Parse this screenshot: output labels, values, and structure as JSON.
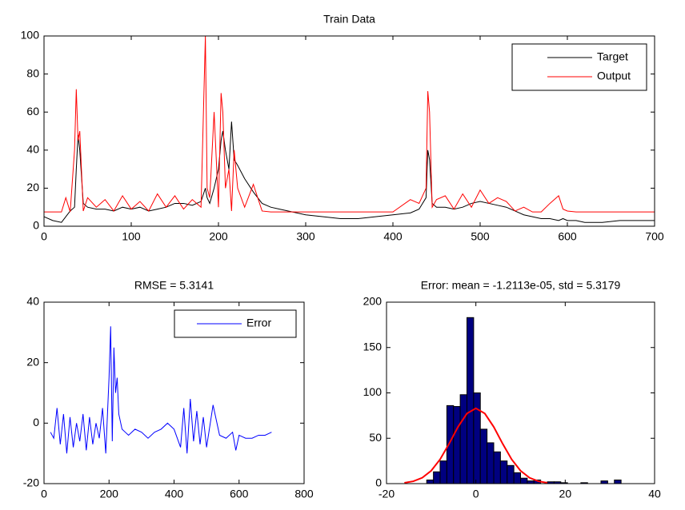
{
  "chart_data": [
    {
      "type": "line",
      "title": "Train Data",
      "x": [
        0,
        10,
        20,
        25,
        30,
        35,
        37,
        39,
        41,
        45,
        50,
        60,
        70,
        80,
        90,
        100,
        110,
        120,
        130,
        140,
        150,
        160,
        170,
        180,
        185,
        187,
        190,
        195,
        200,
        203,
        205,
        208,
        212,
        215,
        218,
        222,
        230,
        240,
        250,
        260,
        270,
        280,
        290,
        300,
        320,
        340,
        360,
        380,
        400,
        420,
        430,
        438,
        440,
        442,
        445,
        450,
        460,
        470,
        480,
        490,
        500,
        510,
        520,
        530,
        540,
        550,
        560,
        570,
        580,
        590,
        595,
        600,
        610,
        620,
        640,
        660,
        680,
        700
      ],
      "series": [
        {
          "name": "Target",
          "color": "#000000",
          "values": [
            5,
            3,
            2,
            5,
            8,
            10,
            30,
            48,
            40,
            12,
            10,
            9,
            9,
            8,
            10,
            9,
            10,
            8,
            9,
            10,
            12,
            12,
            11,
            13,
            20,
            15,
            12,
            20,
            30,
            45,
            50,
            40,
            30,
            55,
            35,
            32,
            25,
            18,
            12,
            10,
            9,
            8,
            7,
            6,
            5,
            4,
            4,
            5,
            6,
            7,
            9,
            15,
            40,
            35,
            12,
            10,
            10,
            9,
            10,
            12,
            13,
            12,
            11,
            10,
            8,
            6,
            5,
            4,
            4,
            3,
            4,
            3,
            3,
            2,
            2,
            3,
            3,
            3
          ]
        },
        {
          "name": "Output",
          "color": "#ff0000",
          "values": [
            7.5,
            7.5,
            7.5,
            15,
            7.5,
            40,
            72,
            45,
            50,
            8,
            15,
            10,
            14,
            8,
            16,
            9,
            13,
            8,
            17,
            10,
            16,
            9,
            14,
            10,
            100,
            20,
            15,
            60,
            10,
            70,
            60,
            20,
            30,
            8,
            40,
            20,
            10,
            22,
            8,
            7.5,
            7.5,
            7.5,
            7.5,
            7.5,
            7.5,
            7.5,
            7.5,
            7.5,
            7.5,
            14,
            12,
            20,
            71,
            60,
            10,
            14,
            16,
            9,
            17,
            10,
            19,
            12,
            15,
            13,
            8,
            10,
            7.5,
            7.5,
            12,
            16,
            9,
            8,
            7.5,
            7.5,
            7.5,
            7.5,
            7.5,
            7.5
          ]
        }
      ],
      "xlim": [
        0,
        700
      ],
      "ylim": [
        0,
        100
      ],
      "xticks": [
        0,
        100,
        200,
        300,
        400,
        500,
        600,
        700
      ],
      "yticks": [
        0,
        20,
        40,
        60,
        80,
        100
      ],
      "legend": "upper right"
    },
    {
      "type": "line",
      "title": "RMSE = 5.3141",
      "x": [
        20,
        30,
        40,
        50,
        60,
        70,
        80,
        90,
        100,
        110,
        120,
        130,
        140,
        150,
        160,
        170,
        180,
        190,
        200,
        205,
        210,
        215,
        220,
        225,
        230,
        240,
        250,
        260,
        280,
        300,
        320,
        340,
        360,
        380,
        400,
        420,
        430,
        440,
        450,
        460,
        470,
        480,
        490,
        500,
        520,
        540,
        560,
        580,
        590,
        600,
        620,
        640,
        660,
        680,
        700
      ],
      "series": [
        {
          "name": "Error",
          "color": "#0000ff",
          "values": [
            -3,
            -5,
            5,
            -7,
            3,
            -10,
            2,
            -8,
            0,
            -6,
            3,
            -9,
            2,
            -7,
            0,
            -5,
            5,
            -10,
            15,
            32,
            -6,
            25,
            10,
            15,
            3,
            -2,
            -3,
            -4,
            -2,
            -3,
            -5,
            -3,
            -2,
            0,
            -2,
            -8,
            5,
            -10,
            8,
            -6,
            4,
            -7,
            2,
            -8,
            6,
            -4,
            -5,
            -3,
            -9,
            -4,
            -5,
            -5,
            -4,
            -4,
            -3
          ]
        }
      ],
      "xlim": [
        0,
        800
      ],
      "ylim": [
        -20,
        40
      ],
      "xticks": [
        0,
        200,
        400,
        600,
        800
      ],
      "yticks": [
        -20,
        0,
        20,
        40
      ],
      "legend": "upper right"
    },
    {
      "type": "histogram",
      "title": "Error: mean = -1.2113e-05, std = 5.3179",
      "bins": [
        -11,
        -9.5,
        -8,
        -6.5,
        -5,
        -3.5,
        -2,
        -0.5,
        1,
        2.5,
        4,
        5.5,
        7,
        8.5,
        10,
        11.5,
        13,
        14.5,
        16,
        17.5,
        19,
        20.5,
        22,
        23.5,
        25,
        26.5,
        28,
        29.5,
        31,
        32.5
      ],
      "counts": [
        4,
        13,
        25,
        86,
        85,
        98,
        183,
        100,
        60,
        45,
        35,
        25,
        20,
        12,
        6,
        3,
        4,
        0,
        2,
        2,
        1,
        0,
        0,
        1,
        0,
        0,
        3,
        0,
        4
      ],
      "color": "#000080",
      "fit": {
        "color": "#ff0000",
        "x": [
          -16,
          -14,
          -12,
          -10,
          -8,
          -6,
          -4,
          -2,
          0,
          2,
          4,
          6,
          8,
          10,
          12,
          14,
          16
        ],
        "values": [
          0.9,
          2.6,
          6.5,
          14.2,
          26.8,
          43.9,
          62.5,
          77.3,
          83,
          77.3,
          62.5,
          43.9,
          26.8,
          14.2,
          6.5,
          2.6,
          0.9
        ]
      },
      "xlim": [
        -20,
        40
      ],
      "ylim": [
        0,
        200
      ],
      "xticks": [
        -20,
        0,
        20,
        40
      ],
      "yticks": [
        0,
        50,
        100,
        150,
        200
      ]
    }
  ]
}
